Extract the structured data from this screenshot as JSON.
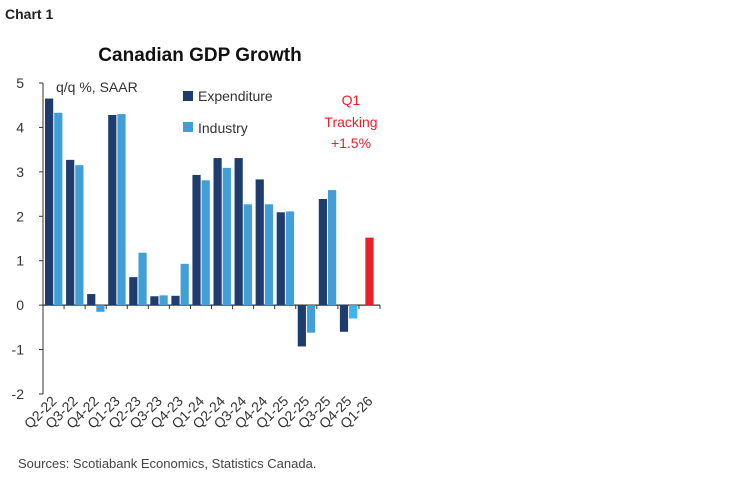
{
  "chart_label": "Chart 1",
  "source": "Sources: Scotiabank Economics, Statistics Canada.",
  "chart_data": {
    "type": "bar",
    "title": "Canadian GDP Growth",
    "unit_label": "q/q %, SAAR",
    "ylim": [
      -2,
      5
    ],
    "yticks": [
      5,
      4,
      3,
      2,
      1,
      0,
      -1,
      -2
    ],
    "grid": false,
    "legend_position": "top-center",
    "categories": [
      "Q2-22",
      "Q3-22",
      "Q4-22",
      "Q1-23",
      "Q2-23",
      "Q3-23",
      "Q4-23",
      "Q1-24",
      "Q2-24",
      "Q3-24",
      "Q4-24",
      "Q1-25",
      "Q2-25",
      "Q3-25",
      "Q4-25",
      "Q1-26"
    ],
    "series": [
      {
        "name": "Expenditure",
        "color": "#1f3c6e",
        "values": [
          4.65,
          3.27,
          0.25,
          4.28,
          0.63,
          0.2,
          0.21,
          2.93,
          3.31,
          3.31,
          2.83,
          2.09,
          -0.93,
          2.39,
          -0.6,
          null
        ]
      },
      {
        "name": "Industry",
        "color": "#3f9fd6",
        "values": [
          4.33,
          3.15,
          -0.15,
          4.3,
          1.18,
          0.22,
          0.93,
          2.81,
          3.09,
          2.27,
          2.27,
          2.11,
          -0.62,
          2.59,
          -0.3,
          null
        ]
      },
      {
        "name": "",
        "color": "#e8202a",
        "values": [
          null,
          null,
          null,
          null,
          null,
          null,
          null,
          null,
          null,
          null,
          null,
          null,
          null,
          null,
          null,
          1.52
        ]
      }
    ],
    "annotation": {
      "lines": [
        "Q1",
        "Tracking",
        "+1.5%"
      ],
      "color": "#e8202a"
    },
    "highlight_color": "#3fb4f0"
  }
}
